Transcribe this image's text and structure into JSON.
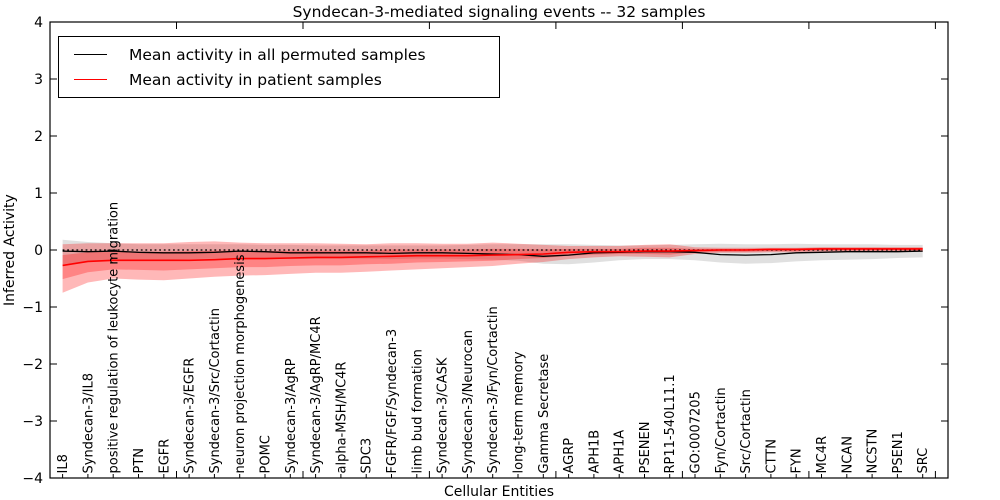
{
  "chart_data": {
    "type": "line",
    "title": "Syndecan-3-mediated signaling events -- 32 samples",
    "xlabel": "Cellular Entities",
    "ylabel": "Inferred Activity",
    "ylim": [
      -4,
      4
    ],
    "yticks": [
      -4,
      -3,
      -2,
      -1,
      0,
      1,
      2,
      3,
      4
    ],
    "grid": false,
    "legend_position": "upper left",
    "categories": [
      "IL8",
      "Syndecan-3/IL8",
      "positive regulation of leukocyte migration",
      "PTN",
      "EGFR",
      "Syndecan-3/EGFR",
      "Syndecan-3/Src/Cortactin",
      "neuron projection morphogenesis",
      "POMC",
      "Syndecan-3/AgRP",
      "Syndecan-3/AgRP/MC4R",
      "alpha-MSH/MC4R",
      "SDC3",
      "FGFR/FGF/Syndecan-3",
      "limb bud formation",
      "Syndecan-3/CASK",
      "Syndecan-3/Neurocan",
      "Syndecan-3/Fyn/Cortactin",
      "long-term memory",
      "Gamma Secretase",
      "AGRP",
      "APH1B",
      "APH1A",
      "PSENEN",
      "RP11-540L11.1",
      "GO:0007205",
      "Fyn/Cortactin",
      "Src/Cortactin",
      "CTTN",
      "FYN",
      "MC4R",
      "NCAN",
      "NCSTN",
      "PSEN1",
      "SRC"
    ],
    "series": [
      {
        "name": "Mean activity in all permuted samples",
        "color": "#000000",
        "width": 1.3,
        "values": [
          -0.02,
          -0.03,
          -0.02,
          -0.04,
          -0.05,
          -0.05,
          -0.04,
          -0.02,
          -0.03,
          -0.05,
          -0.05,
          -0.05,
          -0.05,
          -0.06,
          -0.05,
          -0.05,
          -0.06,
          -0.07,
          -0.08,
          -0.11,
          -0.09,
          -0.05,
          -0.04,
          -0.03,
          -0.03,
          -0.04,
          -0.08,
          -0.09,
          -0.08,
          -0.05,
          -0.04,
          -0.03,
          -0.03,
          -0.03,
          -0.02
        ]
      },
      {
        "name": "Mean activity in patient samples",
        "color": "#ff0000",
        "width": 1.6,
        "values": [
          -0.27,
          -0.2,
          -0.18,
          -0.18,
          -0.18,
          -0.18,
          -0.17,
          -0.15,
          -0.15,
          -0.14,
          -0.13,
          -0.13,
          -0.12,
          -0.11,
          -0.1,
          -0.1,
          -0.1,
          -0.09,
          -0.08,
          -0.07,
          -0.04,
          -0.03,
          -0.03,
          -0.02,
          -0.02,
          -0.01,
          0.0,
          0.0,
          0.01,
          0.01,
          0.02,
          0.02,
          0.02,
          0.02,
          0.02
        ]
      }
    ],
    "baseline": {
      "value": 0,
      "color": "#000000",
      "style": "dotted"
    },
    "bands": [
      {
        "name": "permuted-samples-range",
        "color": "rgba(0,0,0,0.12)",
        "upper": [
          0.18,
          0.14,
          0.12,
          0.1,
          0.1,
          0.1,
          0.1,
          0.1,
          0.09,
          0.09,
          0.08,
          0.08,
          0.08,
          0.08,
          0.08,
          0.08,
          0.09,
          0.1,
          0.1,
          0.1,
          0.1,
          0.09,
          0.08,
          0.08,
          0.09,
          0.1,
          0.11,
          0.1,
          0.1,
          0.11,
          0.1,
          0.1,
          0.1,
          0.09,
          0.09
        ],
        "lower": [
          -0.25,
          -0.2,
          -0.17,
          -0.17,
          -0.17,
          -0.16,
          -0.15,
          -0.14,
          -0.15,
          -0.16,
          -0.15,
          -0.15,
          -0.15,
          -0.16,
          -0.15,
          -0.15,
          -0.16,
          -0.17,
          -0.19,
          -0.24,
          -0.25,
          -0.22,
          -0.18,
          -0.16,
          -0.16,
          -0.18,
          -0.22,
          -0.24,
          -0.23,
          -0.2,
          -0.18,
          -0.17,
          -0.16,
          -0.14,
          -0.13
        ]
      },
      {
        "name": "patient-samples-range-outer",
        "color": "rgba(255,0,0,0.28)",
        "upper": [
          0.1,
          0.12,
          0.12,
          0.12,
          0.12,
          0.14,
          0.15,
          0.13,
          0.12,
          0.12,
          0.12,
          0.11,
          0.1,
          0.12,
          0.12,
          0.11,
          0.11,
          0.13,
          0.11,
          0.09,
          0.07,
          0.07,
          0.07,
          0.09,
          0.1,
          0.05,
          0.04,
          0.04,
          0.04,
          0.04,
          0.05,
          0.05,
          0.05,
          0.05,
          0.05
        ],
        "lower": [
          -0.75,
          -0.57,
          -0.5,
          -0.52,
          -0.53,
          -0.5,
          -0.47,
          -0.45,
          -0.44,
          -0.42,
          -0.4,
          -0.4,
          -0.38,
          -0.36,
          -0.34,
          -0.32,
          -0.3,
          -0.28,
          -0.24,
          -0.21,
          -0.16,
          -0.13,
          -0.11,
          -0.12,
          -0.13,
          -0.07,
          -0.05,
          -0.05,
          -0.04,
          -0.04,
          -0.03,
          -0.03,
          -0.03,
          -0.03,
          -0.03
        ]
      },
      {
        "name": "patient-samples-range-inner",
        "color": "rgba(255,0,0,0.28)",
        "upper": [
          -0.09,
          -0.04,
          -0.03,
          -0.03,
          -0.03,
          -0.02,
          -0.01,
          -0.01,
          -0.02,
          -0.01,
          -0.01,
          -0.01,
          -0.01,
          0.01,
          0.01,
          0.01,
          0.01,
          0.02,
          0.02,
          0.01,
          0.02,
          0.02,
          0.02,
          0.04,
          0.04,
          0.02,
          0.02,
          0.02,
          0.03,
          0.03,
          0.04,
          0.04,
          0.04,
          0.04,
          0.04
        ],
        "lower": [
          -0.51,
          -0.39,
          -0.34,
          -0.35,
          -0.36,
          -0.34,
          -0.32,
          -0.3,
          -0.3,
          -0.28,
          -0.27,
          -0.27,
          -0.25,
          -0.24,
          -0.22,
          -0.21,
          -0.2,
          -0.19,
          -0.16,
          -0.14,
          -0.1,
          -0.08,
          -0.07,
          -0.07,
          -0.08,
          -0.04,
          -0.03,
          -0.03,
          -0.02,
          -0.02,
          -0.01,
          -0.01,
          -0.01,
          -0.01,
          -0.01
        ]
      }
    ]
  }
}
